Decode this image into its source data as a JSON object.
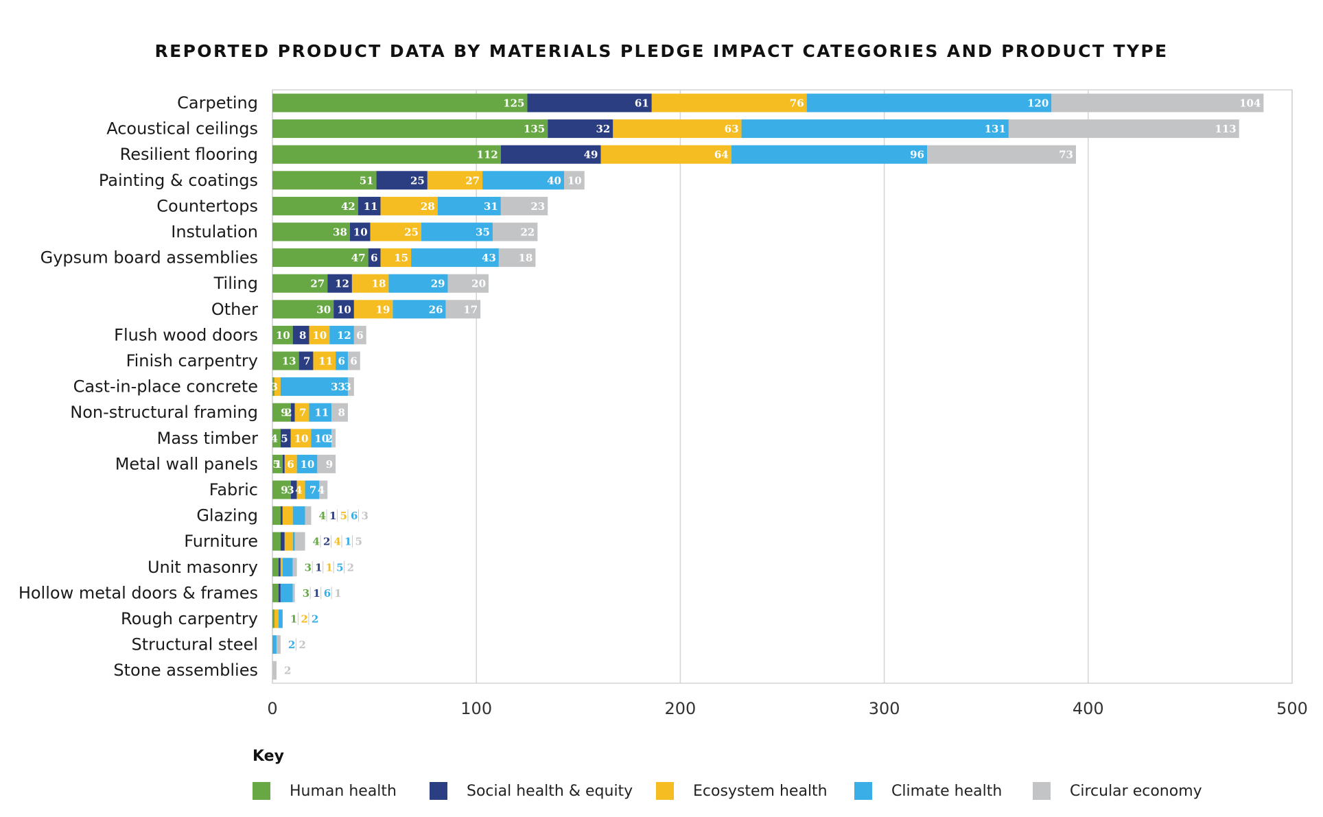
{
  "chart_data": {
    "type": "bar",
    "orientation": "horizontal",
    "stacked": true,
    "title": "REPORTED PRODUCT DATA BY MATERIALS PLEDGE IMPACT CATEGORIES AND PRODUCT TYPE",
    "xlim": [
      0,
      500
    ],
    "xticks": [
      0,
      100,
      200,
      300,
      400,
      500
    ],
    "grid": true,
    "legend_title": "Key",
    "legend_placement": "bottom",
    "categories": [
      "Carpeting",
      "Acoustical ceilings",
      "Resilient flooring",
      "Painting & coatings",
      "Countertops",
      "Instulation",
      "Gypsum board assemblies",
      "Tiling",
      "Other",
      "Flush wood doors",
      "Finish carpentry",
      "Cast-in-place concrete",
      "Non-structural framing",
      "Mass timber",
      "Metal wall panels",
      "Fabric",
      "Glazing",
      "Furniture",
      "Unit masonry",
      "Hollow metal doors & frames",
      "Rough carpentry",
      "Structural steel",
      "Stone assemblies"
    ],
    "series": [
      {
        "name": "Human health",
        "color": "#67a844",
        "values": [
          125,
          135,
          112,
          51,
          42,
          38,
          47,
          27,
          30,
          10,
          13,
          1,
          9,
          4,
          5,
          9,
          4,
          4,
          3,
          3,
          1,
          0,
          0
        ]
      },
      {
        "name": "Social health & equity",
        "color": "#2b3e82",
        "values": [
          61,
          32,
          49,
          25,
          11,
          10,
          6,
          12,
          10,
          8,
          7,
          0,
          2,
          5,
          1,
          3,
          1,
          2,
          1,
          1,
          0,
          0,
          0
        ]
      },
      {
        "name": "Ecosystem health",
        "color": "#f5bd22",
        "values": [
          76,
          63,
          64,
          27,
          28,
          25,
          15,
          18,
          19,
          10,
          11,
          3,
          7,
          10,
          6,
          4,
          5,
          4,
          1,
          0,
          2,
          0,
          0
        ]
      },
      {
        "name": "Climate health",
        "color": "#3aaee6",
        "values": [
          120,
          131,
          96,
          40,
          31,
          35,
          43,
          29,
          26,
          12,
          6,
          33,
          11,
          10,
          10,
          7,
          6,
          1,
          5,
          6,
          2,
          2,
          0
        ]
      },
      {
        "name": "Circular economy",
        "color": "#c3c4c6",
        "values": [
          104,
          113,
          73,
          10,
          23,
          22,
          18,
          20,
          17,
          6,
          6,
          3,
          8,
          2,
          9,
          4,
          3,
          5,
          2,
          1,
          0,
          2,
          2
        ]
      }
    ]
  }
}
